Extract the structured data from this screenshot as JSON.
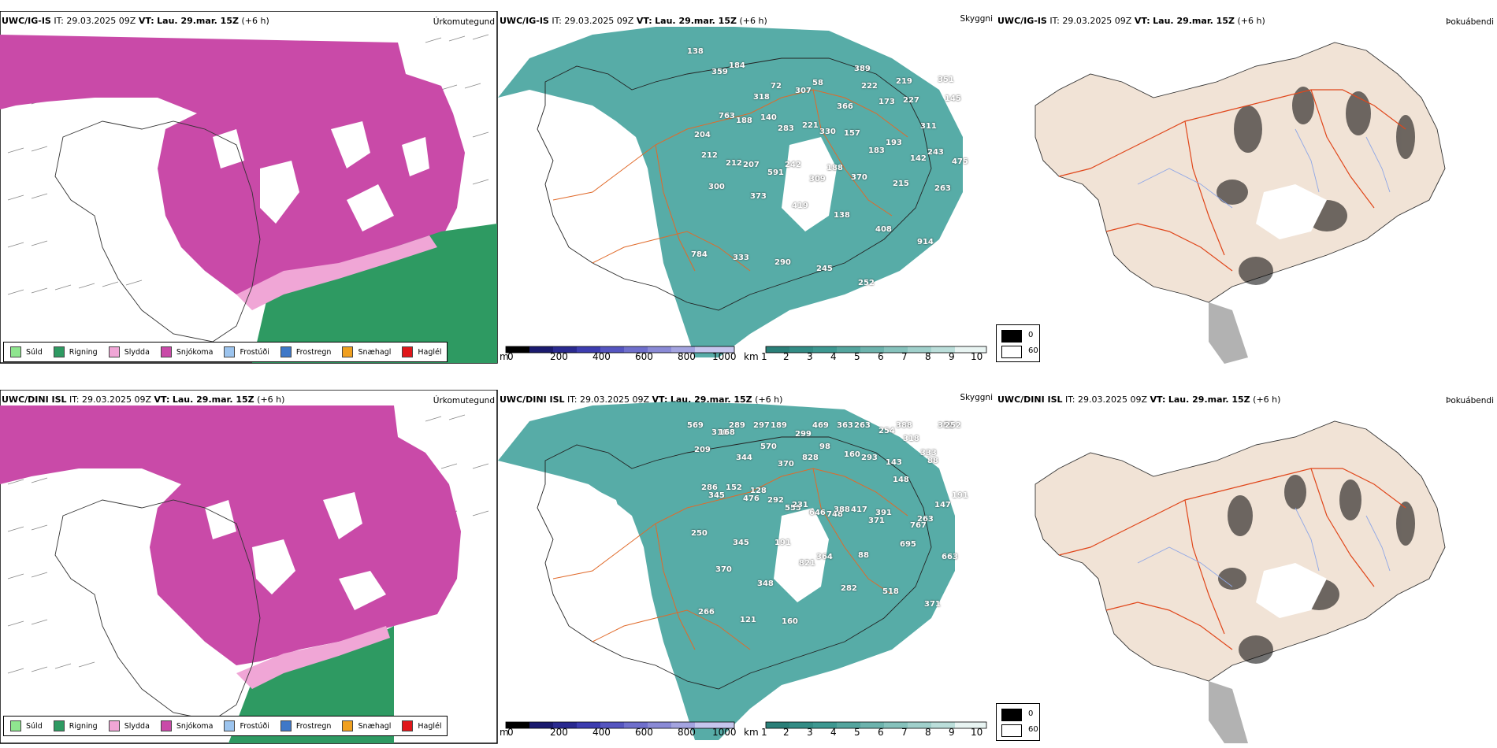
{
  "rows": [
    {
      "model": "UWC/IG-IS",
      "it_label": "IT:",
      "it_value": "29.03.2025 09Z",
      "vt_label": "VT:",
      "vt_value": "Lau. 29.mar. 15Z",
      "lead": "(+6 h)",
      "labels": [
        [
          138,
          60
        ],
        [
          184,
          78
        ],
        [
          72,
          104
        ],
        [
          58,
          100
        ],
        [
          389,
          82
        ],
        [
          219,
          98
        ],
        [
          351,
          96
        ],
        [
          359,
          86
        ],
        [
          318,
          118
        ],
        [
          307,
          110
        ],
        [
          366,
          130
        ],
        [
          173,
          124
        ],
        [
          311,
          155
        ],
        [
          204,
          166
        ],
        [
          188,
          148
        ],
        [
          283,
          158
        ],
        [
          330,
          162
        ],
        [
          222,
          104
        ],
        [
          227,
          122
        ],
        [
          145,
          120
        ],
        [
          763,
          142
        ],
        [
          140,
          144
        ],
        [
          221,
          154
        ],
        [
          157,
          164
        ],
        [
          193,
          176
        ],
        [
          243,
          188
        ],
        [
          212,
          192
        ],
        [
          207,
          204
        ],
        [
          242,
          204
        ],
        [
          188,
          208
        ],
        [
          183,
          186
        ],
        [
          142,
          196
        ],
        [
          475,
          200
        ],
        [
          212,
          202
        ],
        [
          591,
          214
        ],
        [
          309,
          222
        ],
        [
          370,
          220
        ],
        [
          215,
          228
        ],
        [
          263,
          234
        ],
        [
          300,
          232
        ],
        [
          373,
          244
        ],
        [
          419,
          256
        ],
        [
          138,
          268
        ],
        [
          408,
          286
        ],
        [
          914,
          302
        ],
        [
          784,
          318
        ],
        [
          333,
          322
        ],
        [
          290,
          328
        ],
        [
          245,
          336
        ],
        [
          252,
          354
        ]
      ]
    },
    {
      "model": "UWC/DINI ISL",
      "it_label": "IT:",
      "it_value": "29.03.2025 09Z",
      "vt_label": "VT:",
      "vt_value": "Lau. 29.mar. 15Z",
      "lead": "(+6 h)",
      "labels": [
        [
          569,
          488
        ],
        [
          289,
          486
        ],
        [
          189,
          488
        ],
        [
          469,
          500
        ],
        [
          263,
          514
        ],
        [
          388,
          514
        ],
        [
          352,
          506
        ],
        [
          310,
          544
        ],
        [
          297,
          532
        ],
        [
          299,
          546
        ],
        [
          363,
          532
        ],
        [
          254,
          542
        ],
        [
          333,
          570
        ],
        [
          209,
          566
        ],
        [
          344,
          576
        ],
        [
          370,
          584
        ],
        [
          98,
          562
        ],
        [
          293,
          576
        ],
        [
          318,
          552
        ],
        [
          252,
          526
        ],
        [
          168,
          544
        ],
        [
          570,
          562
        ],
        [
          828,
          576
        ],
        [
          160,
          572
        ],
        [
          143,
          582
        ],
        [
          88,
          580
        ],
        [
          286,
          614
        ],
        [
          476,
          628
        ],
        [
          555,
          640
        ],
        [
          748,
          648
        ],
        [
          371,
          656
        ],
        [
          767,
          662
        ],
        [
          191,
          624
        ],
        [
          152,
          614
        ],
        [
          292,
          630
        ],
        [
          646,
          646
        ],
        [
          417,
          642
        ],
        [
          148,
          604
        ],
        [
          147,
          636
        ],
        [
          345,
          624
        ],
        [
          128,
          618
        ],
        [
          231,
          636
        ],
        [
          388,
          642
        ],
        [
          391,
          646
        ],
        [
          263,
          654
        ],
        [
          250,
          672
        ],
        [
          345,
          684
        ],
        [
          191,
          684
        ],
        [
          364,
          702
        ],
        [
          88,
          700
        ],
        [
          695,
          686
        ],
        [
          663,
          702
        ],
        [
          370,
          718
        ],
        [
          348,
          736
        ],
        [
          821,
          710
        ],
        [
          282,
          742
        ],
        [
          518,
          746
        ],
        [
          371,
          762
        ],
        [
          266,
          772
        ],
        [
          121,
          782
        ],
        [
          160,
          784
        ]
      ]
    }
  ],
  "panel_titles": {
    "ptype": "Úrkomutegund",
    "cloud": "Skyggni",
    "visibility": "Þokuábendi"
  },
  "ptype_legend": [
    {
      "label": "Súld",
      "color": "#8fe58f"
    },
    {
      "label": "Rigning",
      "color": "#2e9a62"
    },
    {
      "label": "Slydda",
      "color": "#f0a6d6"
    },
    {
      "label": "Snjókoma",
      "color": "#c94aa8"
    },
    {
      "label": "Frostúði",
      "color": "#9cc4ee"
    },
    {
      "label": "Frostregn",
      "color": "#3f78c8"
    },
    {
      "label": "Snæhagl",
      "color": "#f0a020"
    },
    {
      "label": "Haglél",
      "color": "#e0161a"
    }
  ],
  "cloud_base_scale": {
    "unit": "m",
    "ticks": [
      "0",
      "200",
      "400",
      "600",
      "800",
      "1000"
    ]
  },
  "visibility_scale": {
    "unit": "km",
    "ticks": [
      "1",
      "2",
      "3",
      "4",
      "5",
      "6",
      "7",
      "8",
      "9",
      "10"
    ]
  },
  "fog_legend": {
    "high": "0",
    "low": "60"
  },
  "colors": {
    "snow": "#c94aa8",
    "rain": "#2e9a62",
    "sleet": "#f0a6d6",
    "cloud_teal": "#3a9e98",
    "land_fog": "#f1e3d6",
    "roads": "#e06a2a",
    "rivers": "#8ea6e6"
  }
}
